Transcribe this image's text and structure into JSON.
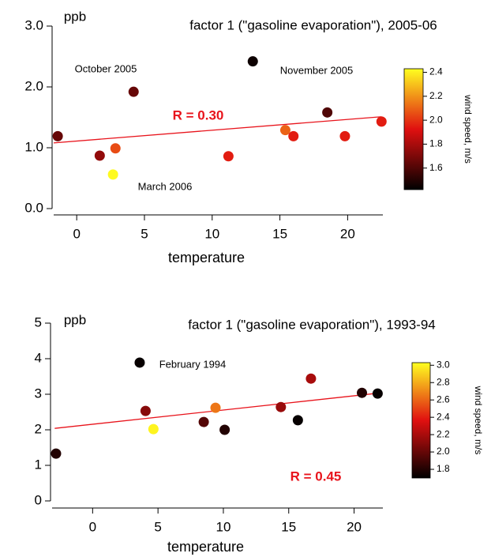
{
  "chart_data": [
    {
      "type": "scatter",
      "title": "factor 1 (\"gasoline evaporation\"), 2005-06",
      "y_label": "ppb",
      "x_label": "temperature",
      "x": [
        -1.4,
        1.7,
        2.86,
        2.68,
        4.2,
        11.2,
        13.0,
        15.4,
        16.0,
        18.5,
        19.8,
        22.5
      ],
      "values": [
        1.19,
        0.87,
        0.99,
        0.56,
        1.92,
        0.86,
        2.42,
        1.29,
        1.19,
        1.58,
        1.19,
        1.43
      ],
      "wind": [
        1.65,
        1.75,
        2.05,
        2.42,
        1.65,
        1.95,
        1.45,
        2.1,
        1.95,
        1.6,
        1.95,
        1.95
      ],
      "xlim": [
        -1.7,
        22.6
      ],
      "ylim": [
        0,
        3
      ],
      "xticks": [
        0,
        5,
        10,
        15,
        20
      ],
      "yticks": [
        {
          "value": 0,
          "label": "0.0"
        },
        {
          "value": 1,
          "label": "1.0"
        },
        {
          "value": 2,
          "label": "2.0"
        },
        {
          "value": 3,
          "label": "3.0"
        }
      ],
      "fit": {
        "x": [
          -1.7,
          22.5
        ],
        "y": [
          1.08,
          1.51
        ],
        "color": "#e8141c"
      },
      "colorbar_label": "wind speed, m/s",
      "colorlim": [
        1.42,
        2.43
      ],
      "colorticks": [
        1.6,
        1.8,
        {
          "value": 2,
          "label": "2.0"
        },
        2.2,
        2.4
      ],
      "colormap": [
        "#000000",
        "#e01010",
        "#ffff20"
      ],
      "annotations": [
        "October 2005",
        "November 2005",
        "March 2006",
        "R = 0.30"
      ]
    },
    {
      "type": "scatter",
      "title": "factor 1 (\"gasoline evaporation\"), 1993-94",
      "y_label": "ppb",
      "x_label": "temperature",
      "x": [
        -2.8,
        3.6,
        4.05,
        4.65,
        8.5,
        9.4,
        10.1,
        14.4,
        15.7,
        16.7,
        20.6,
        21.8
      ],
      "values": [
        1.33,
        3.89,
        2.53,
        2.02,
        2.22,
        2.62,
        2.0,
        2.64,
        2.27,
        3.44,
        3.04,
        3.02
      ],
      "wind": [
        1.8,
        1.72,
        2.1,
        3.0,
        1.95,
        2.65,
        1.8,
        2.15,
        1.72,
        2.2,
        1.8,
        1.72
      ],
      "xlim": [
        -3.1,
        22.2
      ],
      "ylim": [
        0,
        5
      ],
      "xticks": [
        0,
        5,
        10,
        15,
        20
      ],
      "yticks": [
        0,
        1,
        2,
        3,
        4,
        5
      ],
      "fit": {
        "x": [
          -2.9,
          22.1
        ],
        "y": [
          2.04,
          3.04
        ],
        "color": "#e8141c"
      },
      "colorbar_label": "wind speed, m/s",
      "colorlim": [
        1.7,
        3.03
      ],
      "colorticks": [
        1.8,
        {
          "value": 2,
          "label": "2.0"
        },
        2.2,
        2.4,
        2.6,
        2.8,
        {
          "value": 3,
          "label": "3.0"
        }
      ],
      "colormap": [
        "#000000",
        "#e01010",
        "#ffff20"
      ],
      "annotations": [
        "February 1994",
        "R = 0.45"
      ]
    }
  ]
}
